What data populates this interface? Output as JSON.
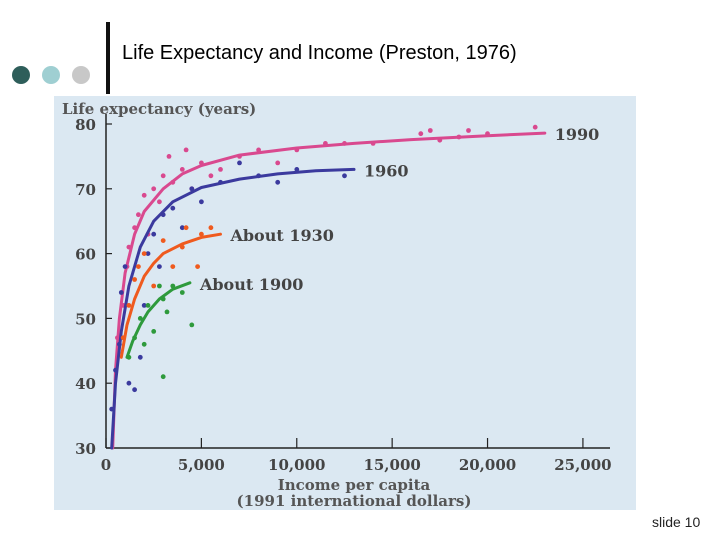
{
  "slide": {
    "title": "Life Expectancy and Income (Preston, 1976)",
    "slide_number": "slide 10",
    "bullet_dot_colors": [
      "#2e5e5a",
      "#9fcfd2",
      "#c8c8c8"
    ]
  },
  "chart_data": {
    "type": "scatter",
    "title": "",
    "xlabel": "Income per capita",
    "xlabel2": "(1991 international dollars)",
    "ylabel": "Life expectancy (years)",
    "xlim": [
      0,
      26000
    ],
    "ylim": [
      30,
      80
    ],
    "x_ticks": [
      0,
      5000,
      10000,
      15000,
      20000,
      25000
    ],
    "x_tick_labels": [
      "0",
      "5,000",
      "10,000",
      "15,000",
      "20,000",
      "25,000"
    ],
    "y_ticks": [
      30,
      40,
      50,
      60,
      70,
      80
    ],
    "y_tick_labels": [
      "30",
      "40",
      "50",
      "60",
      "70",
      "80"
    ],
    "background": "#dbe8f2",
    "series": [
      {
        "name": "1990",
        "color": "#d9498f",
        "curve": [
          [
            350,
            30
          ],
          [
            500,
            42
          ],
          [
            700,
            50
          ],
          [
            1000,
            57
          ],
          [
            1500,
            63
          ],
          [
            2000,
            66.5
          ],
          [
            3000,
            70
          ],
          [
            4000,
            72.3
          ],
          [
            5000,
            73.6
          ],
          [
            7000,
            75.2
          ],
          [
            10000,
            76.3
          ],
          [
            13000,
            77
          ],
          [
            16000,
            77.6
          ],
          [
            20000,
            78.2
          ],
          [
            23000,
            78.6
          ]
        ],
        "points": [
          [
            600,
            47
          ],
          [
            900,
            52
          ],
          [
            1100,
            58
          ],
          [
            1200,
            61
          ],
          [
            1500,
            64
          ],
          [
            1700,
            66
          ],
          [
            2000,
            69
          ],
          [
            2200,
            63
          ],
          [
            2500,
            70
          ],
          [
            2800,
            68
          ],
          [
            3000,
            72
          ],
          [
            3300,
            75
          ],
          [
            3500,
            71
          ],
          [
            4000,
            73
          ],
          [
            4200,
            76
          ],
          [
            4500,
            70
          ],
          [
            5000,
            74
          ],
          [
            5500,
            72
          ],
          [
            6000,
            73
          ],
          [
            7000,
            75
          ],
          [
            8000,
            76
          ],
          [
            9000,
            74
          ],
          [
            10000,
            76
          ],
          [
            11500,
            77
          ],
          [
            12500,
            77
          ],
          [
            14000,
            77
          ],
          [
            16500,
            78.5
          ],
          [
            17000,
            79
          ],
          [
            17500,
            77.5
          ],
          [
            18500,
            78
          ],
          [
            19000,
            79
          ],
          [
            20000,
            78.5
          ],
          [
            22500,
            79.5
          ]
        ]
      },
      {
        "name": "1960",
        "color": "#3b3a9e",
        "curve": [
          [
            300,
            30
          ],
          [
            500,
            40
          ],
          [
            800,
            48
          ],
          [
            1200,
            55
          ],
          [
            1800,
            61
          ],
          [
            2500,
            65
          ],
          [
            3500,
            68
          ],
          [
            5000,
            70.2
          ],
          [
            7000,
            71.5
          ],
          [
            9000,
            72.3
          ],
          [
            11000,
            72.8
          ],
          [
            13000,
            73
          ]
        ],
        "points": [
          [
            300,
            36
          ],
          [
            500,
            42
          ],
          [
            700,
            46
          ],
          [
            800,
            54
          ],
          [
            1000,
            58
          ],
          [
            1200,
            40
          ],
          [
            1500,
            39
          ],
          [
            1800,
            44
          ],
          [
            2000,
            52
          ],
          [
            2200,
            60
          ],
          [
            2500,
            63
          ],
          [
            2800,
            58
          ],
          [
            3000,
            66
          ],
          [
            3500,
            67
          ],
          [
            4000,
            64
          ],
          [
            4500,
            70
          ],
          [
            5000,
            68
          ],
          [
            6000,
            71
          ],
          [
            7000,
            74
          ],
          [
            8000,
            72
          ],
          [
            9000,
            71
          ],
          [
            10000,
            73
          ],
          [
            12500,
            72
          ]
        ]
      },
      {
        "name": "About 1930",
        "color": "#ef5a1e",
        "curve": [
          [
            800,
            44
          ],
          [
            1100,
            49
          ],
          [
            1500,
            53
          ],
          [
            2000,
            56.5
          ],
          [
            2500,
            58.5
          ],
          [
            3000,
            60
          ],
          [
            4000,
            61.5
          ],
          [
            5000,
            62.5
          ],
          [
            6000,
            63
          ]
        ],
        "points": [
          [
            900,
            47
          ],
          [
            1200,
            52
          ],
          [
            1500,
            56
          ],
          [
            1700,
            58
          ],
          [
            2000,
            60
          ],
          [
            2500,
            55
          ],
          [
            3000,
            62
          ],
          [
            3500,
            58
          ],
          [
            4000,
            61
          ],
          [
            4200,
            64
          ],
          [
            5000,
            63
          ],
          [
            5500,
            64
          ],
          [
            4800,
            58
          ]
        ]
      },
      {
        "name": "About 1900",
        "color": "#2e9a3c",
        "curve": [
          [
            1100,
            44
          ],
          [
            1400,
            46.5
          ],
          [
            1800,
            49
          ],
          [
            2200,
            51
          ],
          [
            2800,
            53
          ],
          [
            3500,
            54.5
          ],
          [
            4400,
            55.5
          ]
        ],
        "points": [
          [
            1200,
            44
          ],
          [
            1500,
            47
          ],
          [
            1800,
            50
          ],
          [
            2000,
            46
          ],
          [
            2200,
            52
          ],
          [
            2500,
            48
          ],
          [
            2800,
            55
          ],
          [
            3000,
            53
          ],
          [
            3200,
            51
          ],
          [
            3500,
            55
          ],
          [
            4000,
            54
          ],
          [
            4500,
            49
          ],
          [
            3000,
            41
          ]
        ]
      }
    ]
  }
}
